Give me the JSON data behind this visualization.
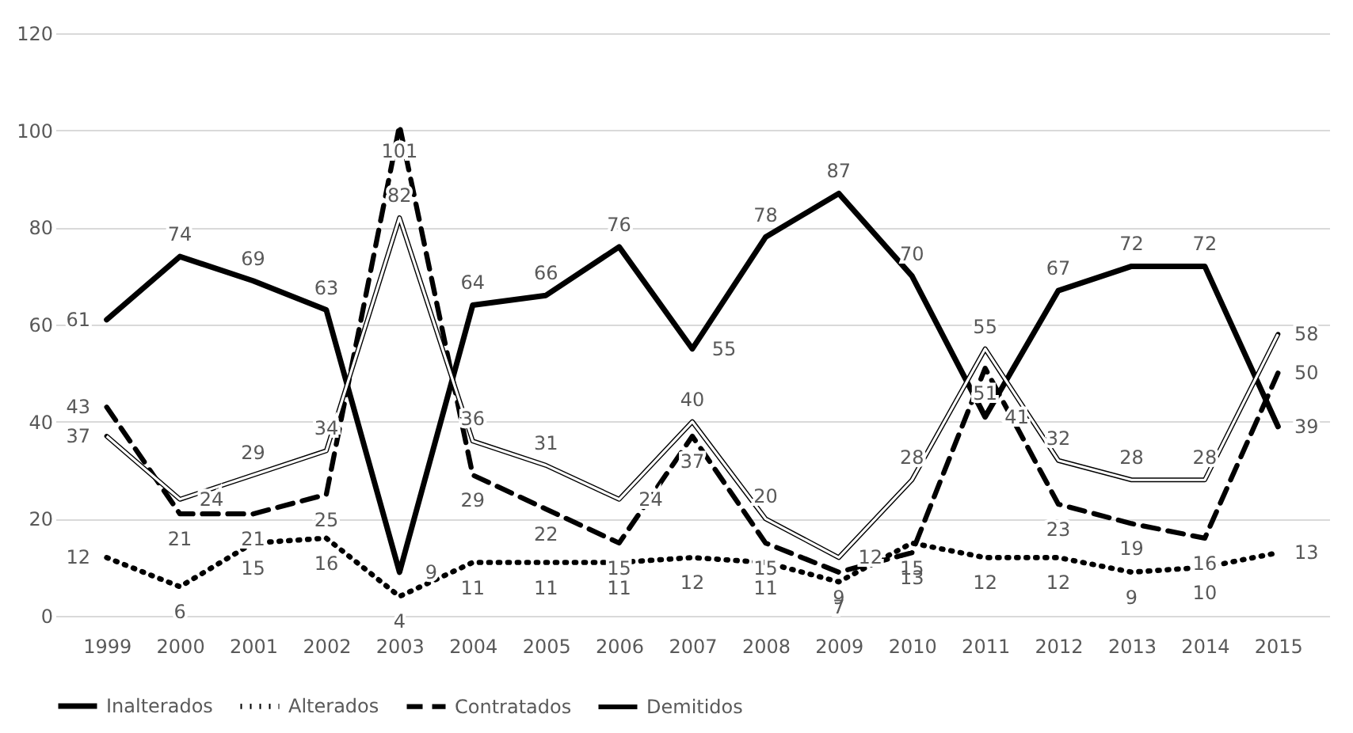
{
  "chart_data": {
    "type": "line",
    "categories": [
      "1999",
      "2000",
      "2001",
      "2002",
      "2003",
      "2004",
      "2005",
      "2006",
      "2007",
      "2008",
      "2009",
      "2010",
      "2011",
      "2012",
      "2013",
      "2014",
      "2015"
    ],
    "series": [
      {
        "name": "Inalterados",
        "color": "#000000",
        "line_style": "solid",
        "values": [
          61,
          74,
          69,
          63,
          9,
          64,
          66,
          76,
          55,
          78,
          87,
          70,
          41,
          67,
          72,
          72,
          39
        ]
      },
      {
        "name": "Alterados",
        "color": "#000000",
        "line_style": "dotted",
        "values": [
          12,
          6,
          15,
          16,
          4,
          11,
          11,
          11,
          12,
          11,
          7,
          15,
          12,
          12,
          9,
          10,
          13
        ]
      },
      {
        "name": "Contratados",
        "color": "#000000",
        "line_style": "dashed",
        "values": [
          43,
          21,
          21,
          25,
          101,
          29,
          22,
          15,
          37,
          15,
          9,
          13,
          51,
          23,
          19,
          16,
          50
        ]
      },
      {
        "name": "Demitidos",
        "color": "#000000",
        "line_style": "solid",
        "values": [
          37,
          24,
          29,
          34,
          82,
          36,
          31,
          24,
          40,
          20,
          12,
          28,
          55,
          32,
          28,
          28,
          58
        ]
      }
    ],
    "ylim": [
      0,
      120
    ],
    "yticks": [
      0,
      20,
      40,
      60,
      80,
      100,
      120
    ],
    "grid": "y",
    "legend": "bottom",
    "marker": "none",
    "data_labels": true
  }
}
